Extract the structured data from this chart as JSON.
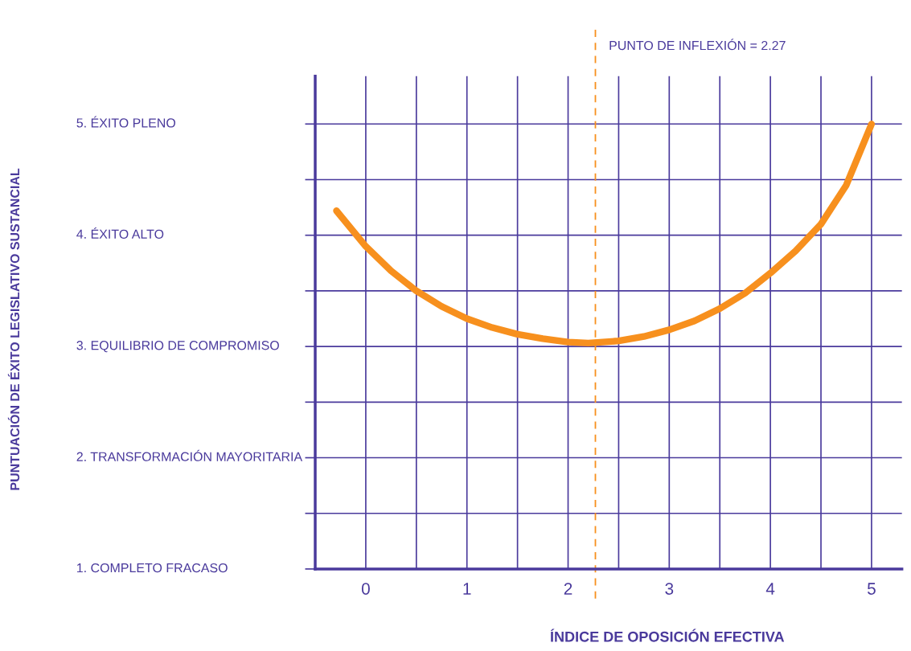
{
  "chart_data": {
    "type": "line",
    "xlabel": "ÍNDICE DE OPOSICIÓN EFECTIVA",
    "ylabel": "PUNTUACIÓN DE ÉXITO LEGISLATIVO SUSTANCIAL",
    "series": [
      {
        "color": "#f7901e",
        "x": [
          -0.29,
          0,
          0.25,
          0.5,
          0.75,
          1,
          1.25,
          1.5,
          1.75,
          2,
          2.2,
          2.5,
          2.75,
          3,
          3.25,
          3.5,
          3.75,
          4,
          4.25,
          4.5,
          4.75,
          5
        ],
        "values": [
          4.22,
          3.9,
          3.68,
          3.5,
          3.36,
          3.25,
          3.17,
          3.11,
          3.07,
          3.04,
          3.03,
          3.05,
          3.09,
          3.15,
          3.23,
          3.34,
          3.48,
          3.66,
          3.86,
          4.1,
          4.45,
          5
        ]
      }
    ],
    "xlim": [
      -0.5,
      5.3
    ],
    "xticks": [
      0,
      {
        "value": 0.5,
        "label": null
      },
      1,
      {
        "value": 1.5,
        "label": null
      },
      2,
      {
        "value": 2.5,
        "label": null
      },
      3,
      {
        "value": 3.5,
        "label": null
      },
      4,
      {
        "value": 4.5,
        "label": null
      },
      5
    ],
    "ylim": [
      1,
      5.43
    ],
    "yticks": [
      {
        "value": 1,
        "label": "1. COMPLETO FRACASO"
      },
      {
        "value": 1.5,
        "label": null
      },
      {
        "value": 2,
        "label": "2. TRANSFORMACIÓN MAYORITARIA"
      },
      {
        "value": 2.5,
        "label": null
      },
      {
        "value": 3,
        "label": "3. EQUILIBRIO DE COMPROMISO"
      },
      {
        "value": 3.5,
        "label": null
      },
      {
        "value": 4,
        "label": "4. ÉXITO ALTO"
      },
      {
        "value": 4.5,
        "label": null
      },
      {
        "value": 5,
        "label": "5. ÉXITO PLENO"
      }
    ],
    "ref_lines": [
      {
        "axis": "x",
        "value": 2.27,
        "label": "PUNTO DE INFLEXIÓN = 2.27",
        "color": "#f7901e",
        "line_style": "dashed"
      }
    ],
    "grid": true,
    "line_style": "solid",
    "marker": "none"
  }
}
